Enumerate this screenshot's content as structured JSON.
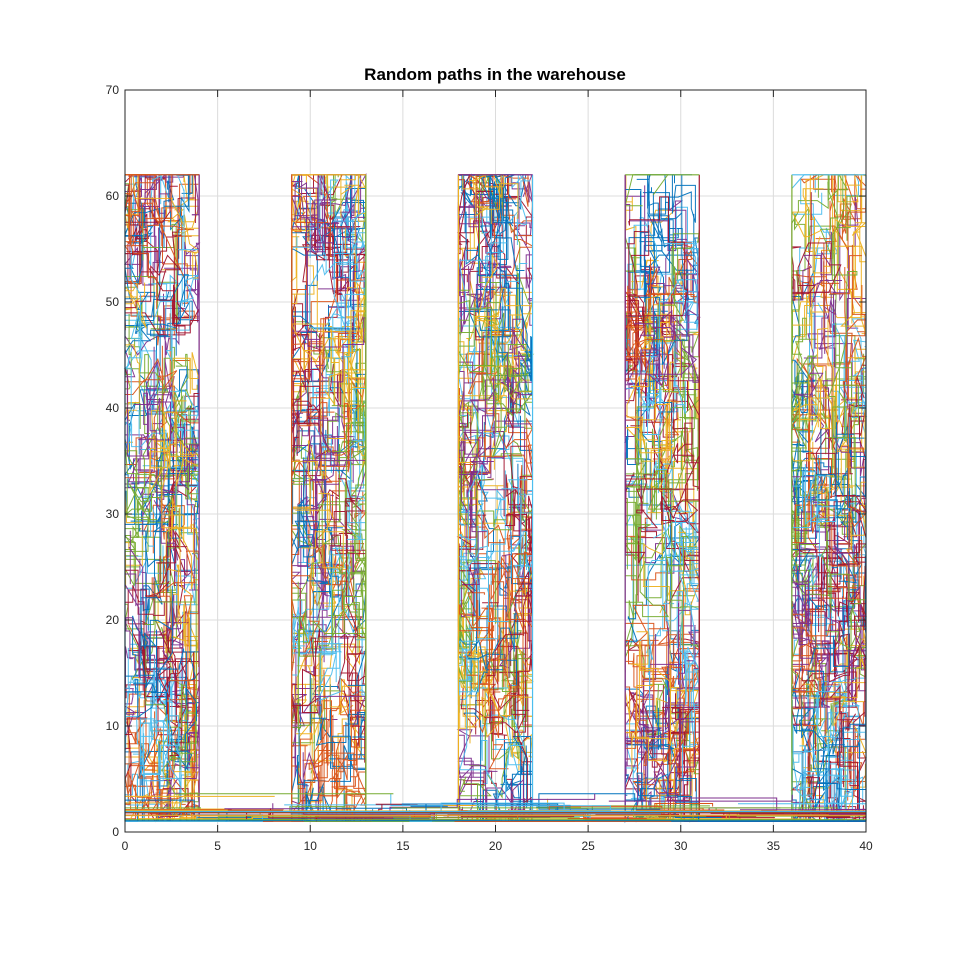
{
  "chart_data": {
    "type": "line",
    "title": "Random paths in the warehouse",
    "xlabel": "",
    "ylabel": "",
    "xlim": [
      0,
      40
    ],
    "ylim": [
      0,
      70
    ],
    "xticks": [
      0,
      5,
      10,
      15,
      20,
      25,
      30,
      35,
      40
    ],
    "yticks": [
      0,
      10,
      20,
      30,
      40,
      50,
      60,
      70
    ],
    "grid": true,
    "legend": "none",
    "aisles": [
      {
        "x_min": 0,
        "x_max": 4,
        "y_min": 1,
        "y_max": 62
      },
      {
        "x_min": 9,
        "x_max": 13,
        "y_min": 1,
        "y_max": 62
      },
      {
        "x_min": 18,
        "x_max": 22,
        "y_min": 1,
        "y_max": 62
      },
      {
        "x_min": 27,
        "x_max": 31,
        "y_min": 1,
        "y_max": 62
      },
      {
        "x_min": 36,
        "x_max": 40,
        "y_min": 1,
        "y_max": 62
      }
    ],
    "corridor": {
      "x_min": 0,
      "x_max": 40,
      "y_min": 1,
      "y_max": 4
    },
    "series_colors": [
      "#0072BD",
      "#D95319",
      "#EDB120",
      "#7E2F8E",
      "#77AC30",
      "#4DBEEE",
      "#A2142F"
    ]
  }
}
